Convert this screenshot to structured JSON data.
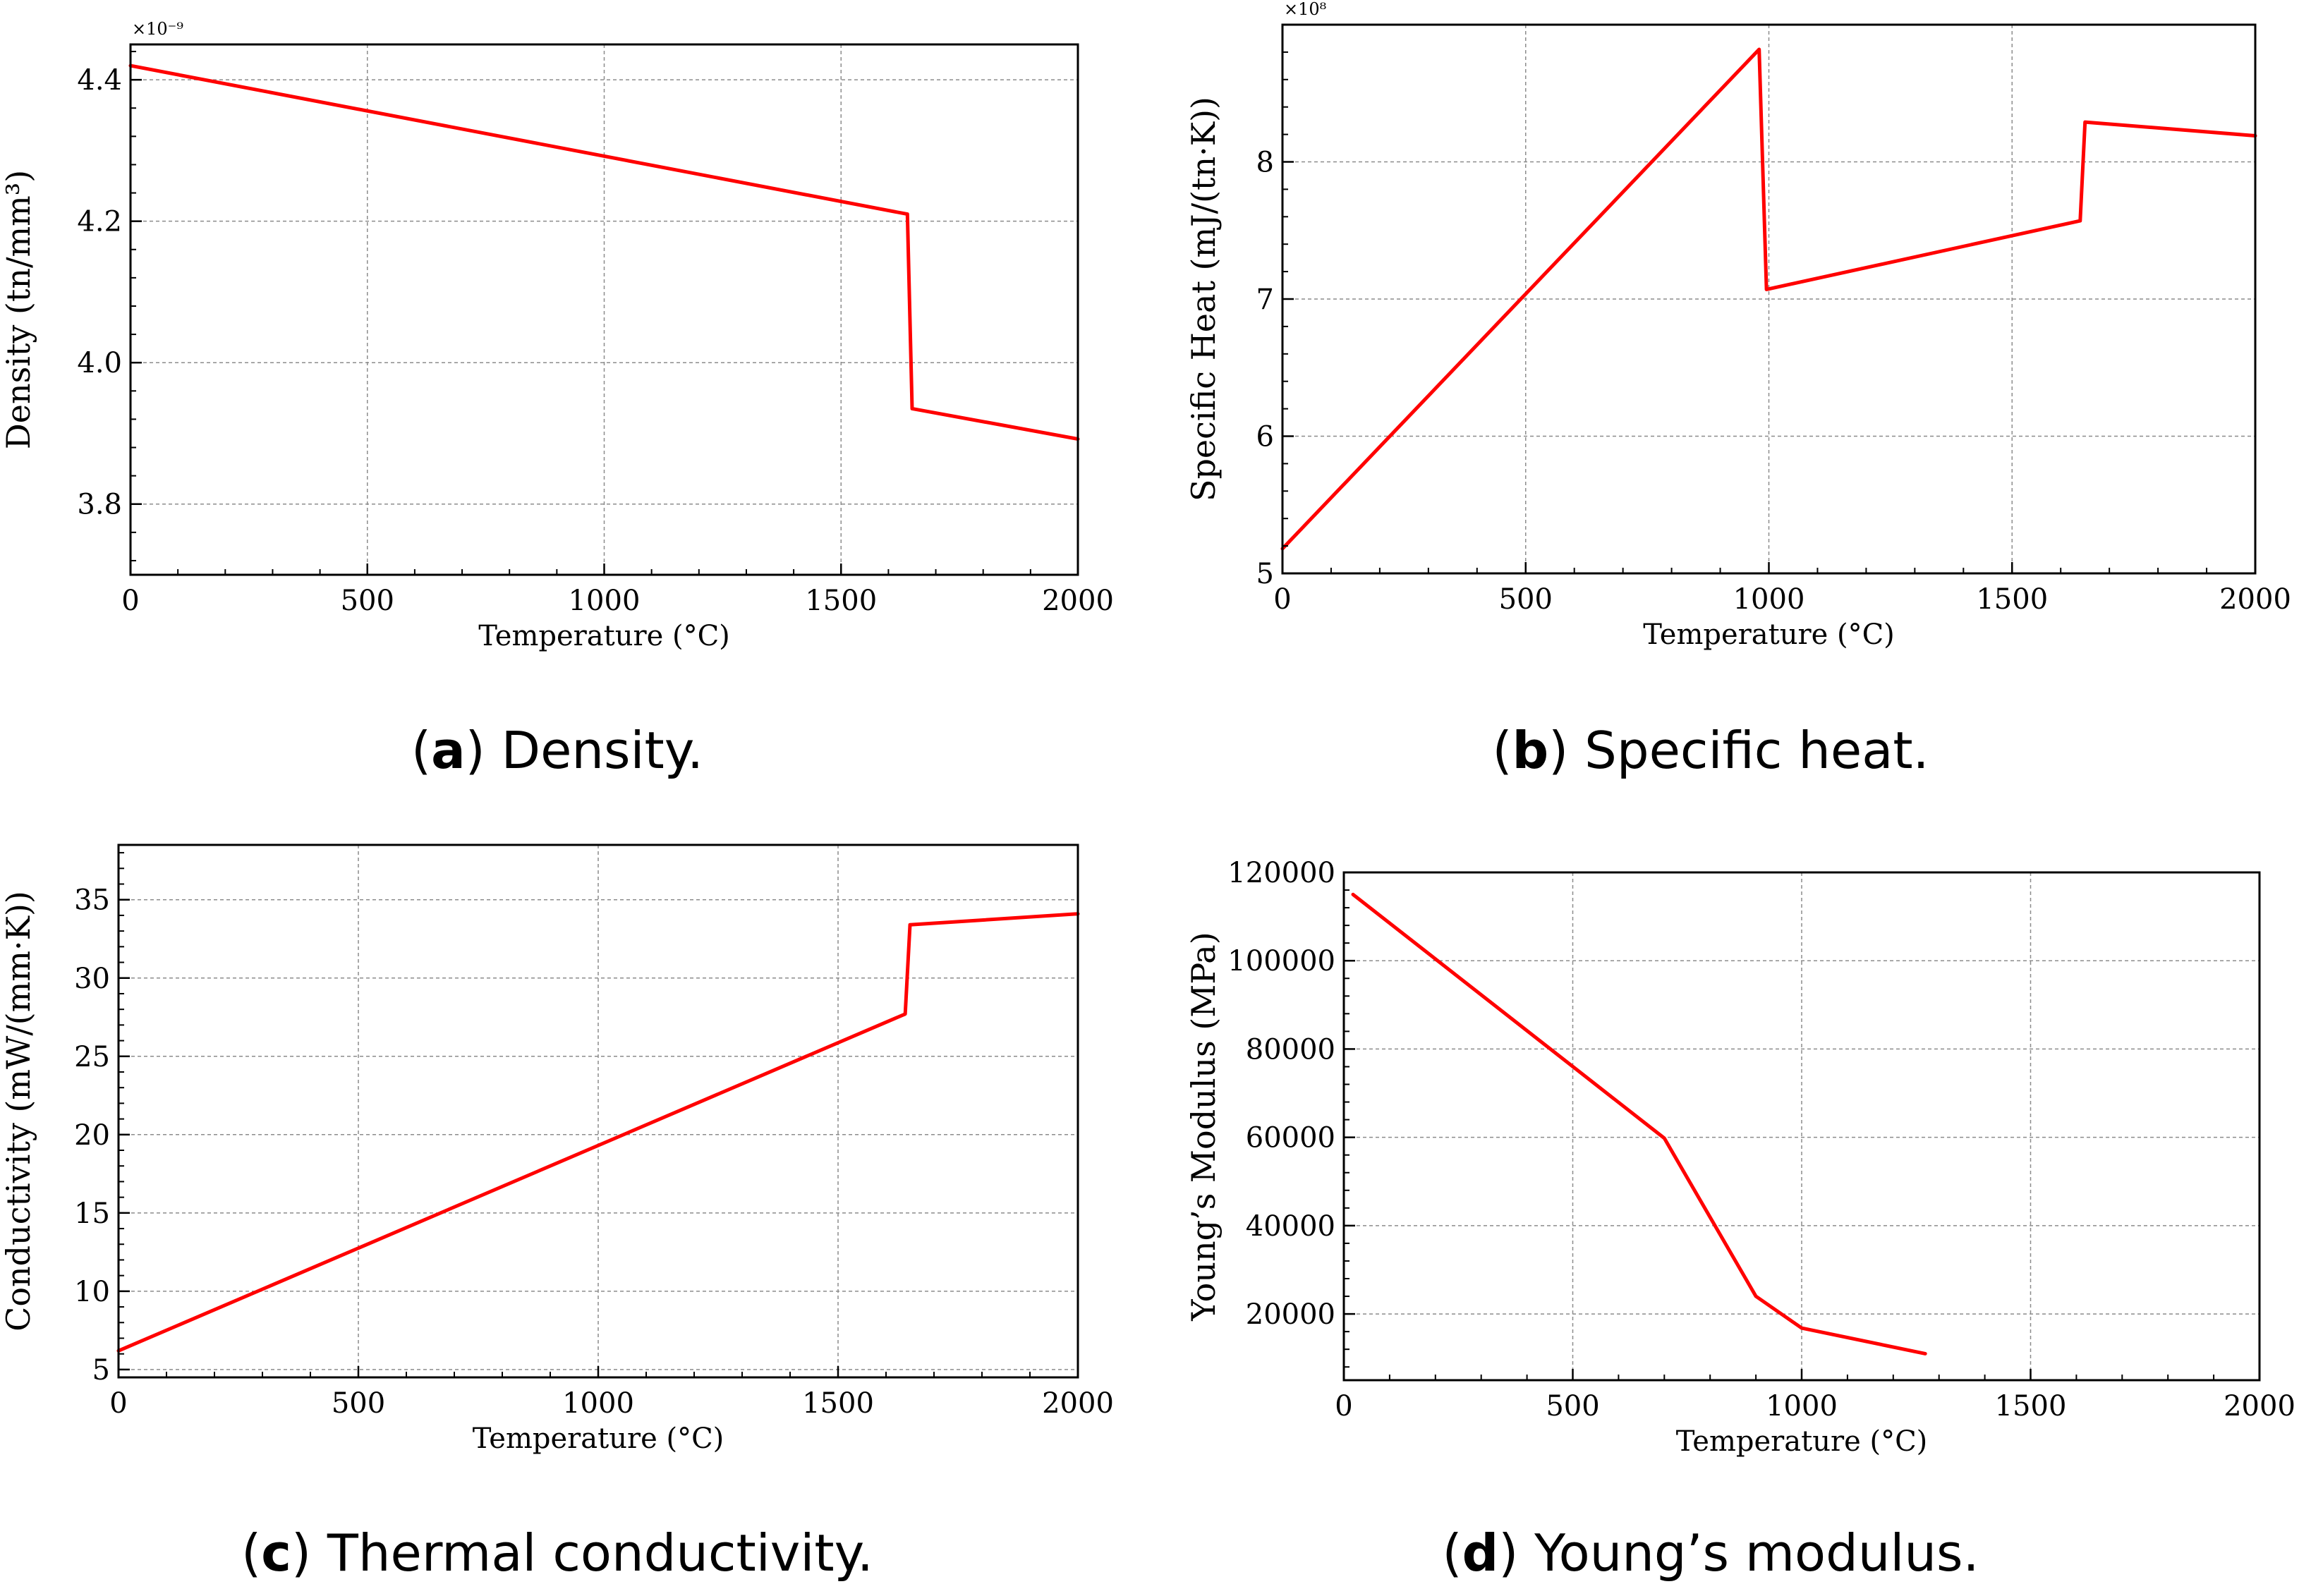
{
  "colors": {
    "line": "#ff0000",
    "grid": "#8c8c8c",
    "axis": "#000000",
    "background": "#ffffff"
  },
  "chart_data": [
    {
      "id": "a",
      "type": "line",
      "title": "",
      "caption_letter": "a",
      "caption_text": "Density.",
      "xlabel": "Temperature (°C)",
      "ylabel": "Density (tn/mm³)",
      "exponent_label": "×10⁻⁹",
      "xlim": [
        0,
        2000
      ],
      "ylim": [
        3.7,
        4.45
      ],
      "xticks": [
        0,
        500,
        1000,
        1500,
        2000
      ],
      "xtick_labels": [
        "0",
        "500",
        "1000",
        "1500",
        "2000"
      ],
      "yticks": [
        3.8,
        4.0,
        4.2,
        4.4
      ],
      "ytick_labels": [
        "3.8",
        "4.0",
        "4.2",
        "4.4"
      ],
      "grid": true,
      "series": [
        {
          "name": "Density",
          "x": [
            0,
            1640,
            1650,
            2000
          ],
          "y": [
            4.42,
            4.21,
            3.935,
            3.892
          ]
        }
      ]
    },
    {
      "id": "b",
      "type": "line",
      "title": "",
      "caption_letter": "b",
      "caption_text": "Specific heat.",
      "xlabel": "Temperature (°C)",
      "ylabel": "Specific Heat (mJ/(tn·K))",
      "exponent_label": "×10⁸",
      "xlim": [
        0,
        2000
      ],
      "ylim": [
        5.0,
        9.0
      ],
      "xticks": [
        0,
        500,
        1000,
        1500,
        2000
      ],
      "xtick_labels": [
        "0",
        "500",
        "1000",
        "1500",
        "2000"
      ],
      "yticks": [
        5,
        6,
        7,
        8
      ],
      "ytick_labels": [
        "5",
        "6",
        "7",
        "8"
      ],
      "grid": true,
      "series": [
        {
          "name": "Specific Heat",
          "x": [
            0,
            980,
            995,
            1640,
            1650,
            2000
          ],
          "y": [
            5.18,
            8.82,
            7.07,
            7.57,
            8.29,
            8.19
          ]
        }
      ]
    },
    {
      "id": "c",
      "type": "line",
      "title": "",
      "caption_letter": "c",
      "caption_text": "Thermal conductivity.",
      "xlabel": "Temperature (°C)",
      "ylabel": "Conductivity (mW/(mm·K))",
      "exponent_label": "",
      "xlim": [
        0,
        2000
      ],
      "ylim": [
        4.5,
        38.5
      ],
      "xticks": [
        0,
        500,
        1000,
        1500,
        2000
      ],
      "xtick_labels": [
        "0",
        "500",
        "1000",
        "1500",
        "2000"
      ],
      "yticks": [
        5,
        10,
        15,
        20,
        25,
        30,
        35
      ],
      "ytick_labels": [
        "5",
        "10",
        "15",
        "20",
        "25",
        "30",
        "35"
      ],
      "grid": true,
      "series": [
        {
          "name": "Conductivity",
          "x": [
            0,
            1640,
            1650,
            2000
          ],
          "y": [
            6.2,
            27.7,
            33.4,
            34.1
          ]
        }
      ]
    },
    {
      "id": "d",
      "type": "line",
      "title": "",
      "caption_letter": "d",
      "caption_text": "Young’s modulus.",
      "xlabel": "Temperature (°C)",
      "ylabel": "Young’s Modulus (MPa)",
      "exponent_label": "",
      "xlim": [
        0,
        2000
      ],
      "ylim": [
        5000,
        120000
      ],
      "xticks": [
        0,
        500,
        1000,
        1500,
        2000
      ],
      "xtick_labels": [
        "0",
        "500",
        "1000",
        "1500",
        "2000"
      ],
      "yticks": [
        20000,
        40000,
        60000,
        80000,
        100000,
        120000
      ],
      "ytick_labels": [
        "20000",
        "40000",
        "60000",
        "80000",
        "100000",
        "120000"
      ],
      "grid": true,
      "series": [
        {
          "name": "Young's Modulus",
          "x": [
            20,
            700,
            900,
            1000,
            1270
          ],
          "y": [
            115000,
            59800,
            24000,
            16800,
            11000
          ]
        }
      ]
    }
  ]
}
